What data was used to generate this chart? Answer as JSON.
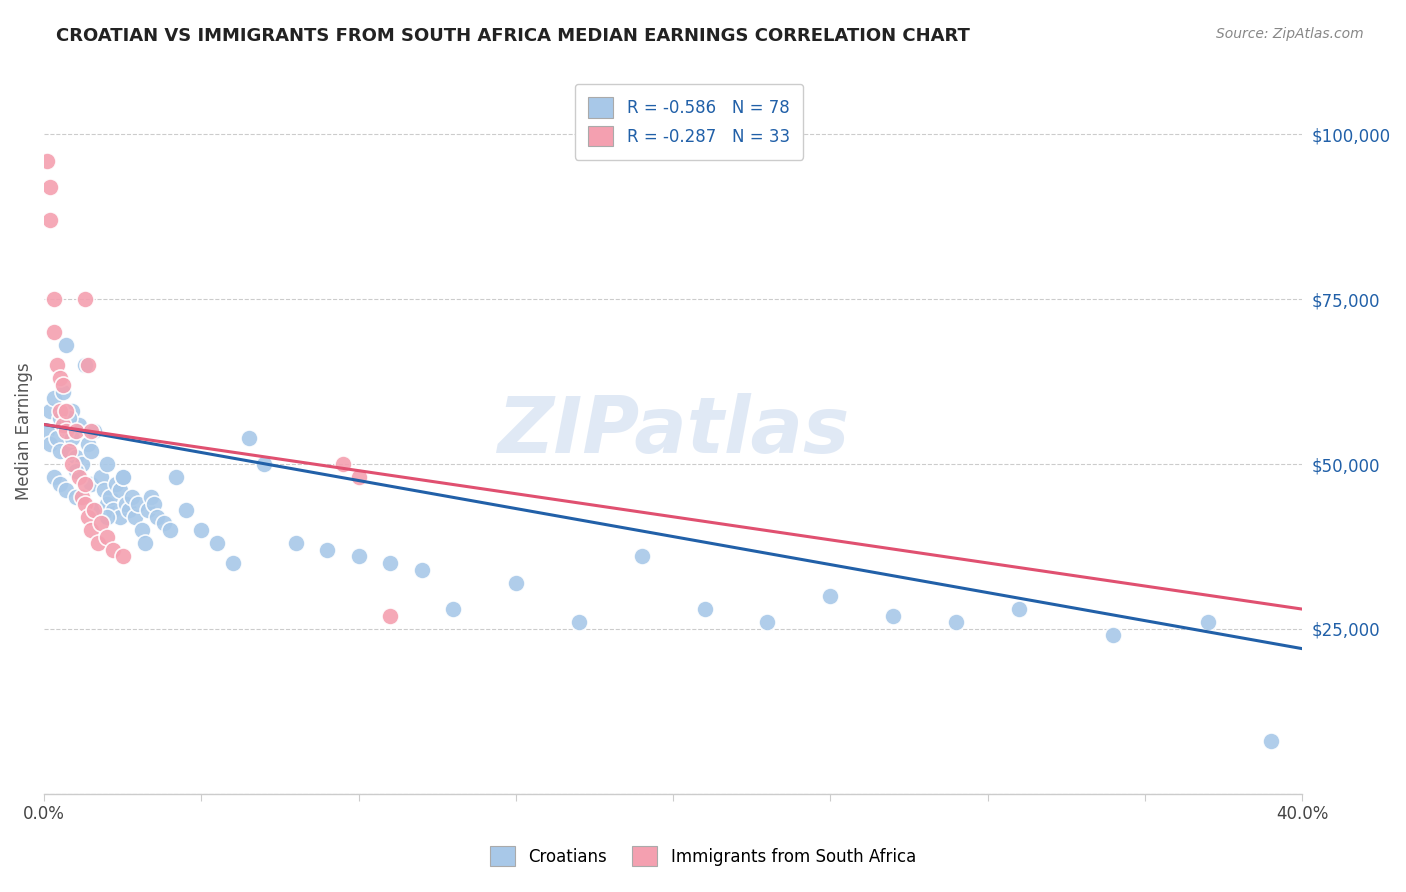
{
  "title": "CROATIAN VS IMMIGRANTS FROM SOUTH AFRICA MEDIAN EARNINGS CORRELATION CHART",
  "source": "Source: ZipAtlas.com",
  "ylabel": "Median Earnings",
  "yticks": [
    0,
    25000,
    50000,
    75000,
    100000
  ],
  "ytick_labels": [
    "",
    "$25,000",
    "$50,000",
    "$75,000",
    "$100,000"
  ],
  "xlim": [
    0.0,
    0.4
  ],
  "ylim": [
    0,
    110000
  ],
  "watermark": "ZIPatlas",
  "blue_color": "#a8c8e8",
  "blue_line_color": "#2160a8",
  "pink_color": "#f4a0b0",
  "pink_line_color": "#e05070",
  "legend_blue_label": "R = -0.586   N = 78",
  "legend_pink_label": "R = -0.287   N = 33",
  "croatians_label": "Croatians",
  "immigrants_label": "Immigrants from South Africa",
  "blue_line_x0": 0.0,
  "blue_line_y0": 56000,
  "blue_line_x1": 0.4,
  "blue_line_y1": 22000,
  "pink_line_x0": 0.0,
  "pink_line_y0": 56000,
  "pink_line_x1": 0.4,
  "pink_line_y1": 28000,
  "blue_x": [
    0.001,
    0.002,
    0.002,
    0.003,
    0.003,
    0.004,
    0.005,
    0.005,
    0.005,
    0.006,
    0.007,
    0.007,
    0.008,
    0.008,
    0.009,
    0.01,
    0.01,
    0.011,
    0.012,
    0.013,
    0.014,
    0.015,
    0.016,
    0.017,
    0.018,
    0.019,
    0.02,
    0.02,
    0.021,
    0.022,
    0.023,
    0.024,
    0.024,
    0.025,
    0.026,
    0.027,
    0.028,
    0.029,
    0.03,
    0.031,
    0.032,
    0.033,
    0.034,
    0.035,
    0.036,
    0.038,
    0.04,
    0.042,
    0.045,
    0.05,
    0.055,
    0.06,
    0.065,
    0.07,
    0.08,
    0.09,
    0.1,
    0.11,
    0.12,
    0.13,
    0.15,
    0.17,
    0.19,
    0.21,
    0.23,
    0.25,
    0.27,
    0.29,
    0.31,
    0.34,
    0.37,
    0.39,
    0.008,
    0.009,
    0.01,
    0.015,
    0.02,
    0.025
  ],
  "blue_y": [
    55000,
    53000,
    58000,
    60000,
    48000,
    54000,
    57000,
    52000,
    47000,
    61000,
    68000,
    46000,
    55000,
    52000,
    58000,
    51000,
    45000,
    56000,
    50000,
    65000,
    53000,
    47000,
    55000,
    43000,
    48000,
    46000,
    50000,
    44000,
    45000,
    43000,
    47000,
    46000,
    42000,
    48000,
    44000,
    43000,
    45000,
    42000,
    44000,
    40000,
    38000,
    43000,
    45000,
    44000,
    42000,
    41000,
    40000,
    48000,
    43000,
    40000,
    38000,
    35000,
    54000,
    50000,
    38000,
    37000,
    36000,
    35000,
    34000,
    28000,
    32000,
    26000,
    36000,
    28000,
    26000,
    30000,
    27000,
    26000,
    28000,
    24000,
    26000,
    8000,
    57000,
    54000,
    49000,
    52000,
    42000,
    48000
  ],
  "pink_x": [
    0.001,
    0.002,
    0.002,
    0.003,
    0.003,
    0.004,
    0.005,
    0.005,
    0.006,
    0.006,
    0.007,
    0.007,
    0.008,
    0.009,
    0.01,
    0.011,
    0.012,
    0.013,
    0.013,
    0.014,
    0.015,
    0.016,
    0.017,
    0.018,
    0.02,
    0.022,
    0.025,
    0.095,
    0.1,
    0.11,
    0.013,
    0.014,
    0.015
  ],
  "pink_y": [
    96000,
    87000,
    92000,
    75000,
    70000,
    65000,
    63000,
    58000,
    62000,
    56000,
    55000,
    58000,
    52000,
    50000,
    55000,
    48000,
    45000,
    47000,
    44000,
    42000,
    40000,
    43000,
    38000,
    41000,
    39000,
    37000,
    36000,
    50000,
    48000,
    27000,
    75000,
    65000,
    55000
  ]
}
